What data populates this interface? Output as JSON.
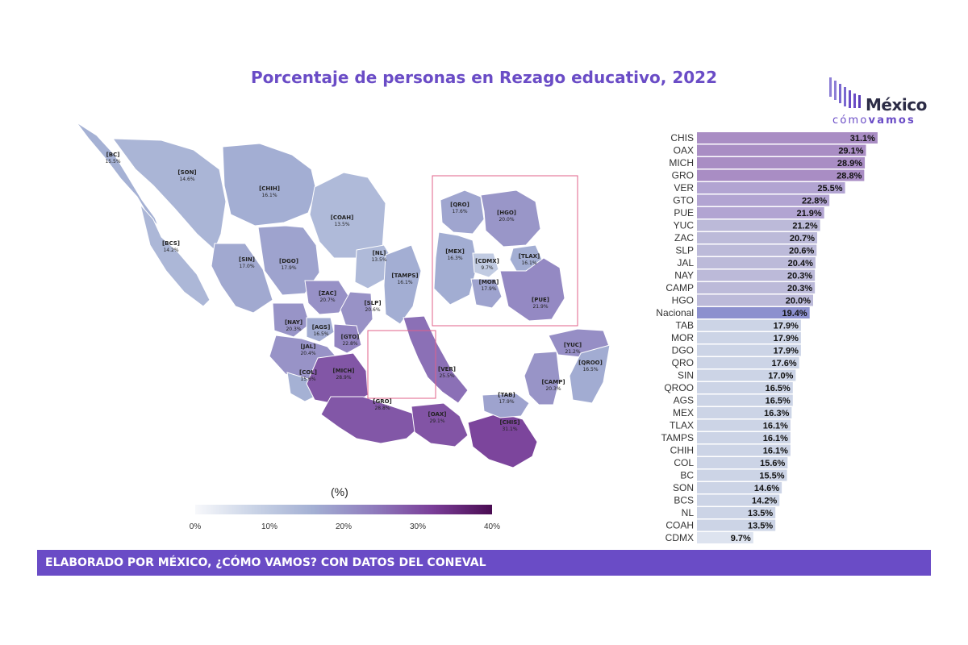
{
  "title": "Porcentaje de personas en Rezago educativo, 2022",
  "logo": {
    "line1": "México",
    "line2a": "cómo",
    "line2b": "vamos"
  },
  "footer": "ELABORADO POR MÉXICO, ¿CÓMO VAMOS? CON DATOS DEL CONEVAL",
  "legend": {
    "unit": "(%)",
    "ticks": [
      "0%",
      "10%",
      "20%",
      "30%",
      "40%"
    ],
    "min": 0,
    "max": 40
  },
  "colors": {
    "accent": "#6a4cc6",
    "bar_high": "#a98dc4",
    "bar_mid": "#bcbad9",
    "bar_low": "#ccd4e6",
    "national": "#8c90ce"
  },
  "chart_data": [
    {
      "type": "bar",
      "orientation": "horizontal",
      "categories": [
        "CHIS",
        "OAX",
        "MICH",
        "GRO",
        "VER",
        "GTO",
        "PUE",
        "YUC",
        "ZAC",
        "SLP",
        "JAL",
        "NAY",
        "CAMP",
        "HGO",
        "Nacional",
        "TAB",
        "MOR",
        "DGO",
        "QRO",
        "SIN",
        "QROO",
        "AGS",
        "MEX",
        "TLAX",
        "TAMPS",
        "CHIH",
        "COL",
        "BC",
        "SON",
        "BCS",
        "NL",
        "COAH",
        "CDMX"
      ],
      "values": [
        31.1,
        29.1,
        28.9,
        28.8,
        25.5,
        22.8,
        21.9,
        21.2,
        20.7,
        20.6,
        20.4,
        20.3,
        20.3,
        20.0,
        19.4,
        17.9,
        17.9,
        17.9,
        17.6,
        17.0,
        16.5,
        16.5,
        16.3,
        16.1,
        16.1,
        16.1,
        15.6,
        15.5,
        14.6,
        14.2,
        13.5,
        13.5,
        9.7
      ],
      "labels": [
        "31.1%",
        "29.1%",
        "28.9%",
        "28.8%",
        "25.5%",
        "22.8%",
        "21.9%",
        "21.2%",
        "20.7%",
        "20.6%",
        "20.4%",
        "20.3%",
        "20.3%",
        "20.0%",
        "19.4%",
        "17.9%",
        "17.9%",
        "17.9%",
        "17.6%",
        "17.0%",
        "16.5%",
        "16.5%",
        "16.3%",
        "16.1%",
        "16.1%",
        "16.1%",
        "15.6%",
        "15.5%",
        "14.6%",
        "14.2%",
        "13.5%",
        "13.5%",
        "9.7%"
      ],
      "highlight": "Nacional"
    },
    {
      "type": "choropleth",
      "unit": "%",
      "range": [
        0,
        40
      ],
      "regions": [
        {
          "abbr": "[BC]",
          "label": "15.5%",
          "value": 15.5
        },
        {
          "abbr": "[SON]",
          "label": "14.6%",
          "value": 14.6
        },
        {
          "abbr": "[CHIH]",
          "label": "16.1%",
          "value": 16.1
        },
        {
          "abbr": "[COAH]",
          "label": "13.5%",
          "value": 13.5
        },
        {
          "abbr": "[BCS]",
          "label": "14.2%",
          "value": 14.2
        },
        {
          "abbr": "[SIN]",
          "label": "17.0%",
          "value": 17.0
        },
        {
          "abbr": "[DGO]",
          "label": "17.9%",
          "value": 17.9
        },
        {
          "abbr": "[NL]",
          "label": "13.5%",
          "value": 13.5
        },
        {
          "abbr": "[TAMPS]",
          "label": "16.1%",
          "value": 16.1
        },
        {
          "abbr": "[ZAC]",
          "label": "20.7%",
          "value": 20.7
        },
        {
          "abbr": "[SLP]",
          "label": "20.6%",
          "value": 20.6
        },
        {
          "abbr": "[NAY]",
          "label": "20.3%",
          "value": 20.3
        },
        {
          "abbr": "[AGS]",
          "label": "16.5%",
          "value": 16.5
        },
        {
          "abbr": "[GTO]",
          "label": "22.8%",
          "value": 22.8
        },
        {
          "abbr": "[JAL]",
          "label": "20.4%",
          "value": 20.4
        },
        {
          "abbr": "[COL]",
          "label": "15.6%",
          "value": 15.6
        },
        {
          "abbr": "[MICH]",
          "label": "28.9%",
          "value": 28.9
        },
        {
          "abbr": "[VER]",
          "label": "25.5%",
          "value": 25.5
        },
        {
          "abbr": "[GRO]",
          "label": "28.8%",
          "value": 28.8
        },
        {
          "abbr": "[OAX]",
          "label": "29.1%",
          "value": 29.1
        },
        {
          "abbr": "[CHIS]",
          "label": "31.1%",
          "value": 31.1
        },
        {
          "abbr": "[TAB]",
          "label": "17.9%",
          "value": 17.9
        },
        {
          "abbr": "[CAMP]",
          "label": "20.3%",
          "value": 20.3
        },
        {
          "abbr": "[YUC]",
          "label": "21.2%",
          "value": 21.2
        },
        {
          "abbr": "[QROO]",
          "label": "16.5%",
          "value": 16.5
        }
      ],
      "inset_regions": [
        {
          "abbr": "[QRO]",
          "label": "17.6%",
          "value": 17.6
        },
        {
          "abbr": "[HGO]",
          "label": "20.0%",
          "value": 20.0
        },
        {
          "abbr": "[MEX]",
          "label": "16.3%",
          "value": 16.3
        },
        {
          "abbr": "[CDMX]",
          "label": "9.7%",
          "value": 9.7
        },
        {
          "abbr": "[TLAX]",
          "label": "16.1%",
          "value": 16.1
        },
        {
          "abbr": "[MOR]",
          "label": "17.9%",
          "value": 17.9
        },
        {
          "abbr": "[PUE]",
          "label": "21.9%",
          "value": 21.9
        }
      ]
    }
  ]
}
